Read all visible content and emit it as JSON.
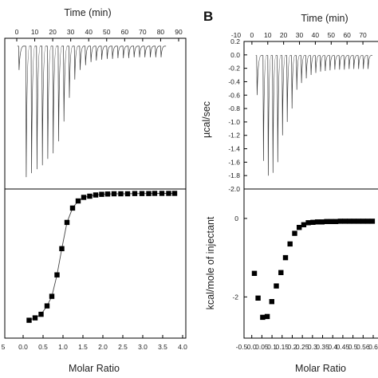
{
  "chart_data": [
    {
      "type": "line",
      "panel": "A-top",
      "xlabel": "Time (min)",
      "xticks": [
        "0",
        "10",
        "20",
        "30",
        "40",
        "50",
        "60",
        "70",
        "80",
        "90"
      ],
      "xlim": [
        0,
        90
      ],
      "ylim": [
        -1.8,
        0.1
      ],
      "injections": {
        "times": [
          1,
          5,
          8,
          11,
          14,
          17,
          20,
          23,
          26,
          29,
          32,
          35,
          38,
          41,
          44,
          47,
          50,
          53,
          56,
          59,
          62,
          65,
          68,
          71,
          74,
          77,
          80
        ],
        "depths": [
          -0.3,
          -1.65,
          -1.6,
          -1.55,
          -1.5,
          -1.42,
          -1.35,
          -1.2,
          -0.95,
          -0.65,
          -0.42,
          -0.3,
          -0.24,
          -0.2,
          -0.18,
          -0.17,
          -0.16,
          -0.16,
          -0.15,
          -0.15,
          -0.15,
          -0.14,
          -0.14,
          -0.14,
          -0.14,
          -0.14,
          -0.14
        ]
      }
    },
    {
      "type": "scatter",
      "panel": "A-bottom",
      "xlabel": "Molar Ratio",
      "xticks": [
        "5",
        "0.0",
        "0.5",
        "1.0",
        "1.5",
        "2.0",
        "2.5",
        "3.0",
        "3.5",
        "4.0"
      ],
      "xlim": [
        -0.5,
        4.0
      ],
      "ylim": [
        -1.15,
        0.1
      ],
      "x": [
        0.15,
        0.3,
        0.45,
        0.6,
        0.72,
        0.85,
        0.97,
        1.1,
        1.24,
        1.38,
        1.52,
        1.67,
        1.82,
        1.97,
        2.12,
        2.28,
        2.45,
        2.62,
        2.8,
        2.98,
        3.15,
        3.3,
        3.48,
        3.65,
        3.8
      ],
      "y": [
        -1.0,
        -0.98,
        -0.95,
        -0.88,
        -0.8,
        -0.62,
        -0.4,
        -0.18,
        -0.06,
        0.0,
        0.03,
        0.04,
        0.05,
        0.055,
        0.058,
        0.06,
        0.06,
        0.06,
        0.062,
        0.062,
        0.062,
        0.063,
        0.063,
        0.063,
        0.063
      ],
      "fit": true
    },
    {
      "type": "line",
      "panel": "B-top",
      "panel_letter": "B",
      "xlabel": "Time (min)",
      "ylabel": "µcal/sec",
      "xticks": [
        "-10",
        "0",
        "10",
        "20",
        "30",
        "40",
        "50",
        "60",
        "70"
      ],
      "yticks": [
        "0.2",
        "0.0",
        "-0.2",
        "-0.4",
        "-0.6",
        "-0.8",
        "-1.0",
        "-1.2",
        "-1.4",
        "-1.6",
        "-1.8",
        "-2.0"
      ],
      "xlim": [
        -10,
        76
      ],
      "ylim": [
        -2.0,
        0.2
      ],
      "injections": {
        "times": [
          3,
          7,
          10,
          13,
          16,
          19,
          22,
          25,
          28,
          31,
          34,
          37,
          40,
          43,
          46,
          49,
          52,
          55,
          58,
          61,
          64,
          67,
          70,
          73
        ],
        "depths": [
          -0.6,
          -1.58,
          -1.8,
          -1.76,
          -1.6,
          -1.2,
          -1.0,
          -0.8,
          -0.52,
          -0.42,
          -0.35,
          -0.3,
          -0.27,
          -0.25,
          -0.24,
          -0.23,
          -0.22,
          -0.22,
          -0.22,
          -0.21,
          -0.21,
          -0.21,
          -0.21,
          -0.21
        ]
      }
    },
    {
      "type": "scatter",
      "panel": "B-bottom",
      "xlabel": "Molar Ratio",
      "ylabel": "kcal/mole of injectant",
      "xticks": [
        "-0.5",
        "0.0",
        "0.05",
        "0.1",
        "0.15",
        "0.2",
        "0.25",
        "0.3",
        "0.35",
        "0.4",
        "0.45",
        "0.5",
        "0.56",
        "0.6"
      ],
      "yticks": [
        "0",
        "-2"
      ],
      "xlim": [
        -0.07,
        0.65
      ],
      "ylim": [
        -3.05,
        0.75
      ],
      "x": [
        0.0,
        0.02,
        0.045,
        0.07,
        0.095,
        0.12,
        0.145,
        0.17,
        0.195,
        0.22,
        0.245,
        0.27,
        0.295,
        0.32,
        0.345,
        0.37,
        0.395,
        0.42,
        0.445,
        0.47,
        0.495,
        0.52,
        0.545,
        0.57,
        0.595,
        0.62,
        0.645
      ],
      "y": [
        -1.4,
        -2.03,
        -2.52,
        -2.5,
        -2.12,
        -1.72,
        -1.38,
        -1.0,
        -0.65,
        -0.38,
        -0.23,
        -0.16,
        -0.11,
        -0.1,
        -0.09,
        -0.09,
        -0.08,
        -0.08,
        -0.08,
        -0.07,
        -0.07,
        -0.07,
        -0.07,
        -0.07,
        -0.07,
        -0.07,
        -0.07
      ]
    }
  ]
}
